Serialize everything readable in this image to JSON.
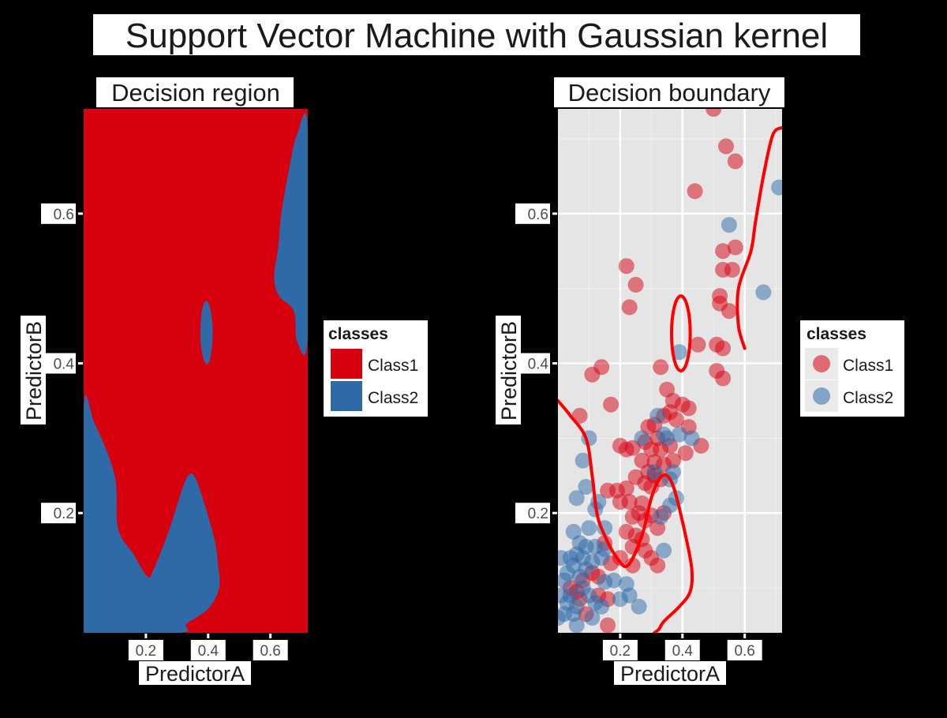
{
  "figure": {
    "title": "Support Vector Machine with Gaussian kernel",
    "background": "#000000",
    "label_color": "#1a1a1a",
    "halo_color": "#ffffff"
  },
  "chart_data": [
    {
      "type": "heatmap",
      "title": "Decision region",
      "xlabel": "PredictorA",
      "ylabel": "PredictorB",
      "xlim": [
        0.0,
        0.72
      ],
      "ylim": [
        0.04,
        0.74
      ],
      "x_ticks": [
        0.2,
        0.4,
        0.6
      ],
      "y_ticks": [
        0.2,
        0.4,
        0.6
      ],
      "legend": {
        "title": "classes",
        "position": "right",
        "entries": [
          {
            "label": "Class1",
            "color": "#d7000f"
          },
          {
            "label": "Class2",
            "color": "#2e6aa8"
          }
        ]
      },
      "region_fill": "#d7000f",
      "regions": [
        {
          "class": "Class2",
          "color": "#2e6aa8",
          "polygon": [
            [
              0.0,
              0.338
            ],
            [
              0.035,
              0.32
            ],
            [
              0.1,
              0.25
            ],
            [
              0.11,
              0.18
            ],
            [
              0.16,
              0.145
            ],
            [
              0.205,
              0.115
            ],
            [
              0.225,
              0.125
            ],
            [
              0.275,
              0.178
            ],
            [
              0.315,
              0.23
            ],
            [
              0.336,
              0.25
            ],
            [
              0.355,
              0.25
            ],
            [
              0.38,
              0.223
            ],
            [
              0.42,
              0.165
            ],
            [
              0.432,
              0.13
            ],
            [
              0.435,
              0.1
            ],
            [
              0.4,
              0.072
            ],
            [
              0.33,
              0.052
            ],
            [
              0.31,
              0.04
            ],
            [
              0.0,
              0.04
            ]
          ]
        },
        {
          "class": "Class2",
          "color": "#2e6aa8",
          "polygon": [
            [
              0.38,
              0.415
            ],
            [
              0.392,
              0.4
            ],
            [
              0.406,
              0.405
            ],
            [
              0.415,
              0.44
            ],
            [
              0.406,
              0.475
            ],
            [
              0.392,
              0.483
            ],
            [
              0.38,
              0.47
            ],
            [
              0.375,
              0.44
            ]
          ]
        },
        {
          "class": "Class2",
          "color": "#2e6aa8",
          "polygon": [
            [
              0.72,
              0.435
            ],
            [
              0.685,
              0.43
            ],
            [
              0.675,
              0.47
            ],
            [
              0.628,
              0.49
            ],
            [
              0.612,
              0.515
            ],
            [
              0.625,
              0.555
            ],
            [
              0.635,
              0.6
            ],
            [
              0.66,
              0.66
            ],
            [
              0.685,
              0.705
            ],
            [
              0.72,
              0.715
            ]
          ]
        }
      ]
    },
    {
      "type": "scatter",
      "title": "Decision boundary",
      "xlabel": "PredictorA",
      "ylabel": "PredictorB",
      "xlim": [
        0.0,
        0.72
      ],
      "ylim": [
        0.04,
        0.74
      ],
      "x_ticks": [
        0.2,
        0.4,
        0.6
      ],
      "y_ticks": [
        0.2,
        0.4,
        0.6
      ],
      "grid": true,
      "legend": {
        "title": "classes",
        "position": "right",
        "entries": [
          {
            "label": "Class1",
            "color": "#d7000f"
          },
          {
            "label": "Class2",
            "color": "#2e6aa8"
          }
        ]
      },
      "series": [
        {
          "name": "Class1",
          "color": "#d7000f",
          "points": [
            [
              0.5,
              0.74
            ],
            [
              0.57,
              0.67
            ],
            [
              0.54,
              0.69
            ],
            [
              0.44,
              0.63
            ],
            [
              0.53,
              0.55
            ],
            [
              0.57,
              0.555
            ],
            [
              0.53,
              0.525
            ],
            [
              0.56,
              0.525
            ],
            [
              0.52,
              0.49
            ],
            [
              0.52,
              0.48
            ],
            [
              0.55,
              0.47
            ],
            [
              0.51,
              0.425
            ],
            [
              0.53,
              0.42
            ],
            [
              0.45,
              0.425
            ],
            [
              0.51,
              0.39
            ],
            [
              0.53,
              0.38
            ],
            [
              0.22,
              0.53
            ],
            [
              0.25,
              0.505
            ],
            [
              0.23,
              0.475
            ],
            [
              0.33,
              0.395
            ],
            [
              0.14,
              0.395
            ],
            [
              0.11,
              0.385
            ],
            [
              0.17,
              0.345
            ],
            [
              0.07,
              0.33
            ],
            [
              0.35,
              0.365
            ],
            [
              0.37,
              0.35
            ],
            [
              0.36,
              0.335
            ],
            [
              0.4,
              0.345
            ],
            [
              0.42,
              0.34
            ],
            [
              0.38,
              0.325
            ],
            [
              0.34,
              0.33
            ],
            [
              0.31,
              0.318
            ],
            [
              0.29,
              0.315
            ],
            [
              0.32,
              0.3
            ],
            [
              0.28,
              0.295
            ],
            [
              0.3,
              0.285
            ],
            [
              0.33,
              0.285
            ],
            [
              0.36,
              0.29
            ],
            [
              0.42,
              0.315
            ],
            [
              0.46,
              0.29
            ],
            [
              0.41,
              0.28
            ],
            [
              0.37,
              0.27
            ],
            [
              0.34,
              0.265
            ],
            [
              0.31,
              0.268
            ],
            [
              0.27,
              0.27
            ],
            [
              0.24,
              0.287
            ],
            [
              0.22,
              0.285
            ],
            [
              0.2,
              0.29
            ],
            [
              0.29,
              0.255
            ],
            [
              0.31,
              0.25
            ],
            [
              0.33,
              0.245
            ],
            [
              0.3,
              0.235
            ],
            [
              0.28,
              0.24
            ],
            [
              0.25,
              0.248
            ],
            [
              0.22,
              0.233
            ],
            [
              0.19,
              0.23
            ],
            [
              0.16,
              0.23
            ],
            [
              0.2,
              0.215
            ],
            [
              0.23,
              0.215
            ],
            [
              0.27,
              0.213
            ],
            [
              0.26,
              0.2
            ],
            [
              0.24,
              0.195
            ],
            [
              0.28,
              0.19
            ],
            [
              0.3,
              0.197
            ],
            [
              0.34,
              0.2
            ],
            [
              0.32,
              0.18
            ],
            [
              0.22,
              0.175
            ],
            [
              0.25,
              0.17
            ],
            [
              0.27,
              0.165
            ],
            [
              0.24,
              0.155
            ],
            [
              0.15,
              0.16
            ],
            [
              0.2,
              0.14
            ],
            [
              0.17,
              0.133
            ],
            [
              0.11,
              0.12
            ],
            [
              0.13,
              0.115
            ],
            [
              0.08,
              0.11
            ],
            [
              0.24,
              0.13
            ],
            [
              0.28,
              0.15
            ],
            [
              0.3,
              0.14
            ],
            [
              0.32,
              0.13
            ],
            [
              0.16,
              0.085
            ],
            [
              0.13,
              0.09
            ],
            [
              0.07,
              0.085
            ],
            [
              0.09,
              0.065
            ],
            [
              0.06,
              0.095
            ],
            [
              0.16,
              0.05
            ],
            [
              0.04,
              0.1
            ]
          ]
        },
        {
          "name": "Class2",
          "color": "#2e6aa8",
          "points": [
            [
              0.71,
              0.635
            ],
            [
              0.55,
              0.585
            ],
            [
              0.66,
              0.495
            ],
            [
              0.39,
              0.415
            ],
            [
              0.32,
              0.33
            ],
            [
              0.34,
              0.305
            ],
            [
              0.35,
              0.3
            ],
            [
              0.39,
              0.305
            ],
            [
              0.43,
              0.3
            ],
            [
              0.37,
              0.255
            ],
            [
              0.38,
              0.22
            ],
            [
              0.36,
              0.21
            ],
            [
              0.36,
              0.245
            ],
            [
              0.1,
              0.3
            ],
            [
              0.08,
              0.27
            ],
            [
              0.09,
              0.235
            ],
            [
              0.06,
              0.22
            ],
            [
              0.13,
              0.215
            ],
            [
              0.12,
              0.205
            ],
            [
              0.15,
              0.18
            ],
            [
              0.1,
              0.18
            ],
            [
              0.05,
              0.175
            ],
            [
              0.07,
              0.16
            ],
            [
              0.09,
              0.155
            ],
            [
              0.12,
              0.155
            ],
            [
              0.15,
              0.152
            ],
            [
              0.06,
              0.145
            ],
            [
              0.04,
              0.14
            ],
            [
              0.03,
              0.12
            ],
            [
              0.08,
              0.14
            ],
            [
              0.11,
              0.135
            ],
            [
              0.14,
              0.14
            ],
            [
              0.05,
              0.13
            ],
            [
              0.09,
              0.125
            ],
            [
              0.07,
              0.115
            ],
            [
              0.15,
              0.108
            ],
            [
              0.18,
              0.11
            ],
            [
              0.22,
              0.105
            ],
            [
              0.02,
              0.11
            ],
            [
              0.04,
              0.09
            ],
            [
              0.06,
              0.075
            ],
            [
              0.03,
              0.08
            ],
            [
              0.05,
              0.065
            ],
            [
              0.08,
              0.1
            ],
            [
              0.1,
              0.09
            ],
            [
              0.12,
              0.08
            ],
            [
              0.14,
              0.075
            ],
            [
              0.2,
              0.085
            ],
            [
              0.23,
              0.09
            ],
            [
              0.26,
              0.075
            ],
            [
              0.11,
              0.06
            ],
            [
              0.02,
              0.065
            ],
            [
              0.01,
              0.09
            ],
            [
              0.06,
              0.05
            ],
            [
              0.0,
              0.06
            ],
            [
              0.01,
              0.14
            ],
            [
              0.27,
              0.3
            ],
            [
              0.31,
              0.255
            ],
            [
              0.33,
              0.195
            ],
            [
              0.34,
              0.15
            ]
          ]
        }
      ],
      "boundary_color": "#ff0000",
      "boundaries": [
        [
          [
            0.0,
            0.35
          ],
          [
            0.04,
            0.33
          ],
          [
            0.09,
            0.3
          ],
          [
            0.11,
            0.25
          ],
          [
            0.125,
            0.2
          ],
          [
            0.15,
            0.17
          ],
          [
            0.19,
            0.14
          ],
          [
            0.225,
            0.13
          ],
          [
            0.27,
            0.17
          ],
          [
            0.3,
            0.22
          ],
          [
            0.325,
            0.245
          ],
          [
            0.35,
            0.25
          ],
          [
            0.375,
            0.23
          ],
          [
            0.41,
            0.17
          ],
          [
            0.43,
            0.125
          ],
          [
            0.425,
            0.095
          ],
          [
            0.39,
            0.075
          ],
          [
            0.34,
            0.055
          ],
          [
            0.325,
            0.045
          ],
          [
            0.31,
            0.04
          ]
        ],
        [
          [
            0.6,
            0.42
          ],
          [
            0.58,
            0.45
          ],
          [
            0.58,
            0.5
          ],
          [
            0.62,
            0.55
          ],
          [
            0.635,
            0.59
          ],
          [
            0.66,
            0.65
          ],
          [
            0.69,
            0.705
          ],
          [
            0.72,
            0.715
          ]
        ]
      ],
      "boundary_loop": {
        "cx": 0.395,
        "cy": 0.44,
        "rx": 0.03,
        "ry": 0.05
      }
    }
  ]
}
